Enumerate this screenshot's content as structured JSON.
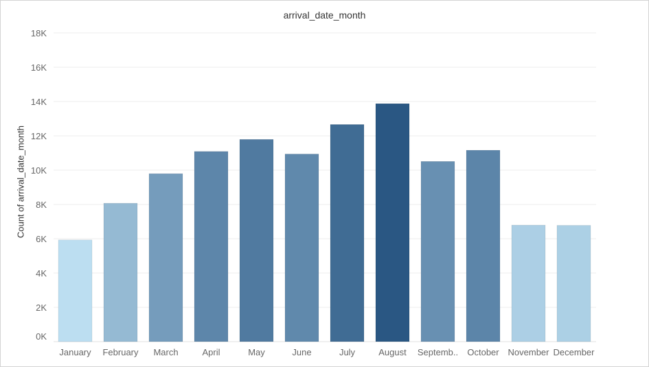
{
  "chart_data": {
    "type": "bar",
    "title": "arrival_date_month",
    "xlabel": "",
    "ylabel": "Count of arrival_date_month",
    "categories": [
      "January",
      "February",
      "March",
      "April",
      "May",
      "June",
      "July",
      "August",
      "Septemb..",
      "October",
      "November",
      "December"
    ],
    "values": [
      5929,
      8068,
      9794,
      11089,
      11791,
      10939,
      12661,
      13877,
      10508,
      11160,
      6794,
      6780
    ],
    "ylim": [
      0,
      18000
    ],
    "yticks": [
      0,
      2000,
      4000,
      6000,
      8000,
      10000,
      12000,
      14000,
      16000,
      18000
    ],
    "ytick_labels": [
      "0K",
      "2K",
      "4K",
      "6K",
      "8K",
      "10K",
      "12K",
      "14K",
      "16K",
      "18K"
    ],
    "grid": true,
    "color_scale": [
      "#bcdef1",
      "#2a5783"
    ]
  }
}
